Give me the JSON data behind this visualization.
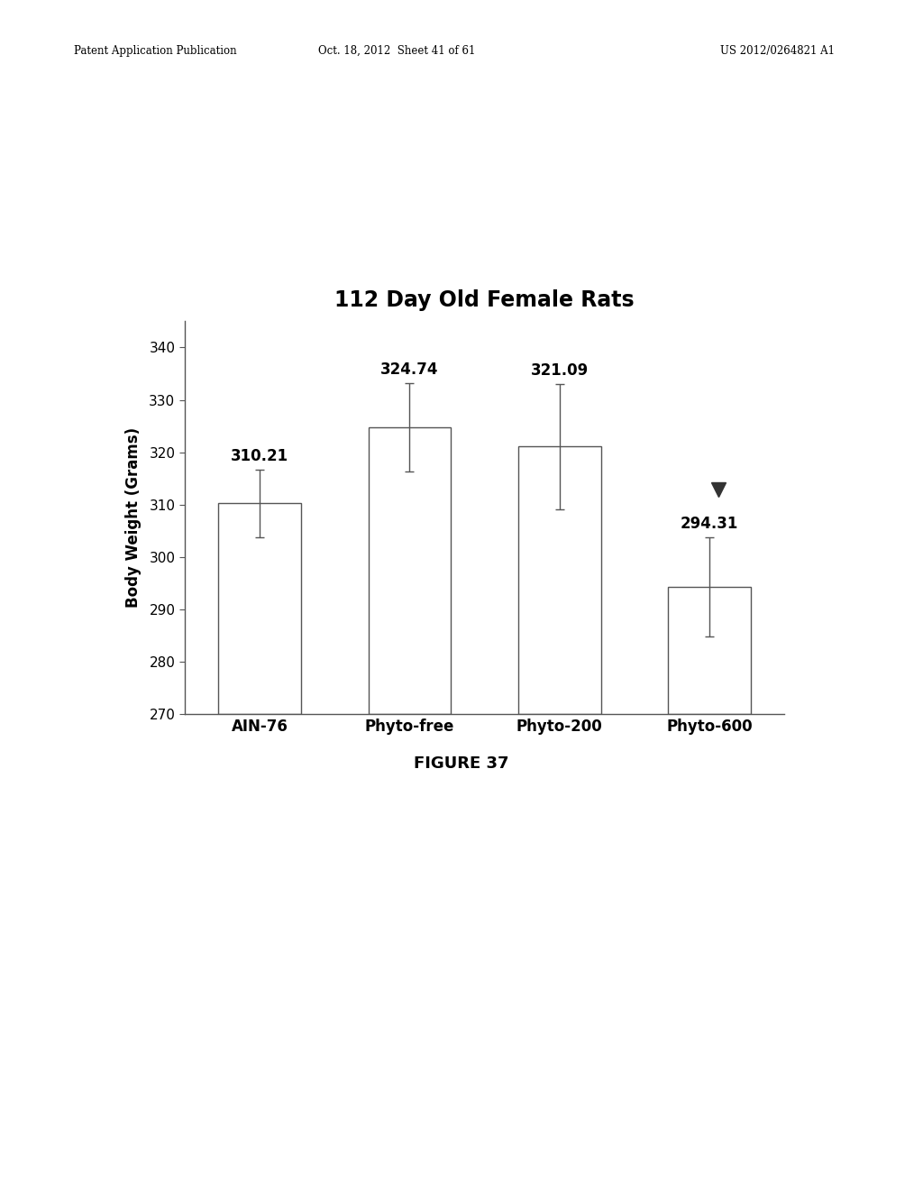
{
  "title": "112 Day Old Female Rats",
  "ylabel": "Body Weight (Grams)",
  "figure_label": "FIGURE 37",
  "categories": [
    "AIN-76",
    "Phyto-free",
    "Phyto-200",
    "Phyto-600"
  ],
  "values": [
    310.21,
    324.74,
    321.09,
    294.31
  ],
  "errors": [
    6.5,
    8.5,
    12.0,
    9.5
  ],
  "bar_color": "#ffffff",
  "bar_edgecolor": "#555555",
  "ylim": [
    270,
    345
  ],
  "yticks": [
    270,
    280,
    290,
    300,
    310,
    320,
    330,
    340
  ],
  "value_labels": [
    "310.21",
    "324.74",
    "321.09",
    "294.31"
  ],
  "significance_marker_bar": 3,
  "background_color": "#ffffff",
  "title_fontsize": 17,
  "label_fontsize": 12,
  "tick_fontsize": 11,
  "value_label_fontsize": 12,
  "figure_label_fontsize": 13,
  "header_left": "Patent Application Publication",
  "header_mid": "Oct. 18, 2012  Sheet 41 of 61",
  "header_right": "US 2012/0264821 A1"
}
